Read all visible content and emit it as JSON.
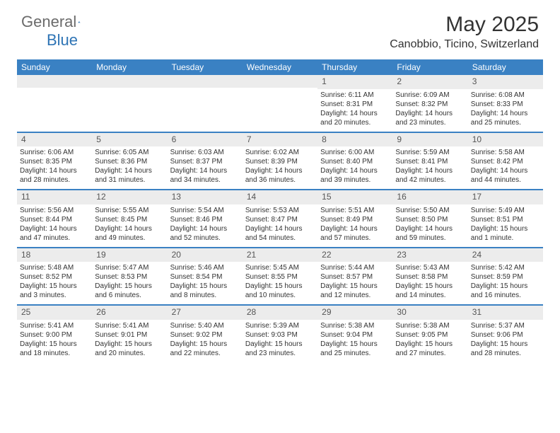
{
  "brand": {
    "part1": "General",
    "part2": "Blue"
  },
  "title": "May 2025",
  "location": "Canobbio, Ticino, Switzerland",
  "colors": {
    "header_bg": "#3a81c3",
    "header_text": "#ffffff",
    "daynum_bg": "#ececec",
    "border": "#3a81c3",
    "text": "#333333",
    "brand_gray": "#6b6b6b",
    "brand_blue": "#2e74b5"
  },
  "day_headers": [
    "Sunday",
    "Monday",
    "Tuesday",
    "Wednesday",
    "Thursday",
    "Friday",
    "Saturday"
  ],
  "weeks": [
    [
      {
        "n": "",
        "sr": "",
        "ss": "",
        "dl": ""
      },
      {
        "n": "",
        "sr": "",
        "ss": "",
        "dl": ""
      },
      {
        "n": "",
        "sr": "",
        "ss": "",
        "dl": ""
      },
      {
        "n": "",
        "sr": "",
        "ss": "",
        "dl": ""
      },
      {
        "n": "1",
        "sr": "Sunrise: 6:11 AM",
        "ss": "Sunset: 8:31 PM",
        "dl": "Daylight: 14 hours and 20 minutes."
      },
      {
        "n": "2",
        "sr": "Sunrise: 6:09 AM",
        "ss": "Sunset: 8:32 PM",
        "dl": "Daylight: 14 hours and 23 minutes."
      },
      {
        "n": "3",
        "sr": "Sunrise: 6:08 AM",
        "ss": "Sunset: 8:33 PM",
        "dl": "Daylight: 14 hours and 25 minutes."
      }
    ],
    [
      {
        "n": "4",
        "sr": "Sunrise: 6:06 AM",
        "ss": "Sunset: 8:35 PM",
        "dl": "Daylight: 14 hours and 28 minutes."
      },
      {
        "n": "5",
        "sr": "Sunrise: 6:05 AM",
        "ss": "Sunset: 8:36 PM",
        "dl": "Daylight: 14 hours and 31 minutes."
      },
      {
        "n": "6",
        "sr": "Sunrise: 6:03 AM",
        "ss": "Sunset: 8:37 PM",
        "dl": "Daylight: 14 hours and 34 minutes."
      },
      {
        "n": "7",
        "sr": "Sunrise: 6:02 AM",
        "ss": "Sunset: 8:39 PM",
        "dl": "Daylight: 14 hours and 36 minutes."
      },
      {
        "n": "8",
        "sr": "Sunrise: 6:00 AM",
        "ss": "Sunset: 8:40 PM",
        "dl": "Daylight: 14 hours and 39 minutes."
      },
      {
        "n": "9",
        "sr": "Sunrise: 5:59 AM",
        "ss": "Sunset: 8:41 PM",
        "dl": "Daylight: 14 hours and 42 minutes."
      },
      {
        "n": "10",
        "sr": "Sunrise: 5:58 AM",
        "ss": "Sunset: 8:42 PM",
        "dl": "Daylight: 14 hours and 44 minutes."
      }
    ],
    [
      {
        "n": "11",
        "sr": "Sunrise: 5:56 AM",
        "ss": "Sunset: 8:44 PM",
        "dl": "Daylight: 14 hours and 47 minutes."
      },
      {
        "n": "12",
        "sr": "Sunrise: 5:55 AM",
        "ss": "Sunset: 8:45 PM",
        "dl": "Daylight: 14 hours and 49 minutes."
      },
      {
        "n": "13",
        "sr": "Sunrise: 5:54 AM",
        "ss": "Sunset: 8:46 PM",
        "dl": "Daylight: 14 hours and 52 minutes."
      },
      {
        "n": "14",
        "sr": "Sunrise: 5:53 AM",
        "ss": "Sunset: 8:47 PM",
        "dl": "Daylight: 14 hours and 54 minutes."
      },
      {
        "n": "15",
        "sr": "Sunrise: 5:51 AM",
        "ss": "Sunset: 8:49 PM",
        "dl": "Daylight: 14 hours and 57 minutes."
      },
      {
        "n": "16",
        "sr": "Sunrise: 5:50 AM",
        "ss": "Sunset: 8:50 PM",
        "dl": "Daylight: 14 hours and 59 minutes."
      },
      {
        "n": "17",
        "sr": "Sunrise: 5:49 AM",
        "ss": "Sunset: 8:51 PM",
        "dl": "Daylight: 15 hours and 1 minute."
      }
    ],
    [
      {
        "n": "18",
        "sr": "Sunrise: 5:48 AM",
        "ss": "Sunset: 8:52 PM",
        "dl": "Daylight: 15 hours and 3 minutes."
      },
      {
        "n": "19",
        "sr": "Sunrise: 5:47 AM",
        "ss": "Sunset: 8:53 PM",
        "dl": "Daylight: 15 hours and 6 minutes."
      },
      {
        "n": "20",
        "sr": "Sunrise: 5:46 AM",
        "ss": "Sunset: 8:54 PM",
        "dl": "Daylight: 15 hours and 8 minutes."
      },
      {
        "n": "21",
        "sr": "Sunrise: 5:45 AM",
        "ss": "Sunset: 8:55 PM",
        "dl": "Daylight: 15 hours and 10 minutes."
      },
      {
        "n": "22",
        "sr": "Sunrise: 5:44 AM",
        "ss": "Sunset: 8:57 PM",
        "dl": "Daylight: 15 hours and 12 minutes."
      },
      {
        "n": "23",
        "sr": "Sunrise: 5:43 AM",
        "ss": "Sunset: 8:58 PM",
        "dl": "Daylight: 15 hours and 14 minutes."
      },
      {
        "n": "24",
        "sr": "Sunrise: 5:42 AM",
        "ss": "Sunset: 8:59 PM",
        "dl": "Daylight: 15 hours and 16 minutes."
      }
    ],
    [
      {
        "n": "25",
        "sr": "Sunrise: 5:41 AM",
        "ss": "Sunset: 9:00 PM",
        "dl": "Daylight: 15 hours and 18 minutes."
      },
      {
        "n": "26",
        "sr": "Sunrise: 5:41 AM",
        "ss": "Sunset: 9:01 PM",
        "dl": "Daylight: 15 hours and 20 minutes."
      },
      {
        "n": "27",
        "sr": "Sunrise: 5:40 AM",
        "ss": "Sunset: 9:02 PM",
        "dl": "Daylight: 15 hours and 22 minutes."
      },
      {
        "n": "28",
        "sr": "Sunrise: 5:39 AM",
        "ss": "Sunset: 9:03 PM",
        "dl": "Daylight: 15 hours and 23 minutes."
      },
      {
        "n": "29",
        "sr": "Sunrise: 5:38 AM",
        "ss": "Sunset: 9:04 PM",
        "dl": "Daylight: 15 hours and 25 minutes."
      },
      {
        "n": "30",
        "sr": "Sunrise: 5:38 AM",
        "ss": "Sunset: 9:05 PM",
        "dl": "Daylight: 15 hours and 27 minutes."
      },
      {
        "n": "31",
        "sr": "Sunrise: 5:37 AM",
        "ss": "Sunset: 9:06 PM",
        "dl": "Daylight: 15 hours and 28 minutes."
      }
    ]
  ]
}
